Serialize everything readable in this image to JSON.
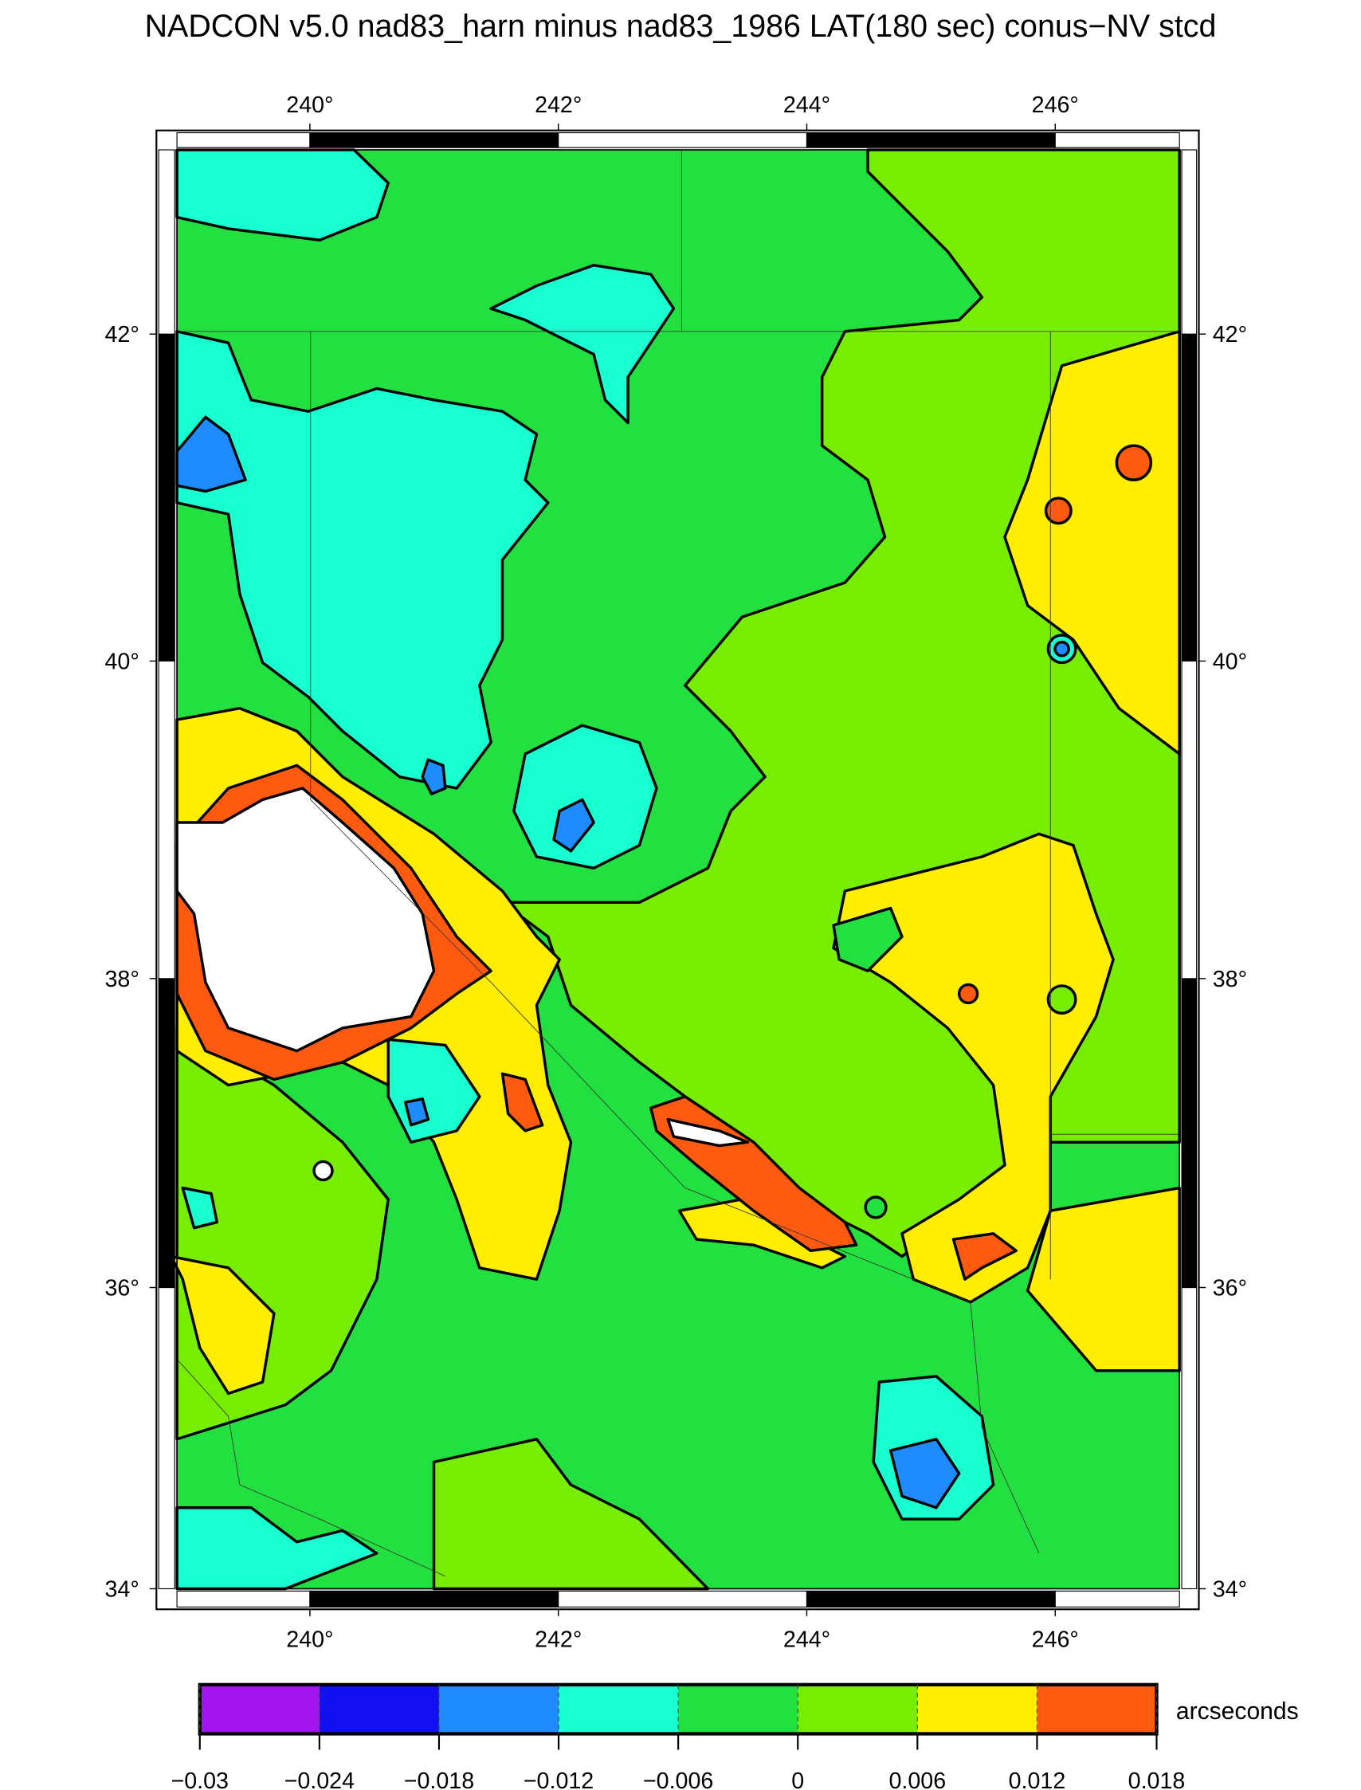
{
  "chart_data": {
    "type": "map",
    "title": "NADCON v5.0 nad83_harn minus nad83_1986 LAT(180 sec) conus−NV stcd",
    "xlim": [
      238.93,
      247
    ],
    "ylim": [
      34,
      43.1
    ],
    "xticks": [
      {
        "value": 240,
        "label": "240°"
      },
      {
        "value": 242,
        "label": "242°"
      },
      {
        "value": 244,
        "label": "244°"
      },
      {
        "value": 246,
        "label": "246°"
      }
    ],
    "yticks": [
      {
        "value": 34,
        "label": "34°"
      },
      {
        "value": 36,
        "label": "36°"
      },
      {
        "value": 38,
        "label": "38°"
      },
      {
        "value": 40,
        "label": "40°"
      },
      {
        "value": 42,
        "label": "42°"
      }
    ],
    "colorbar": {
      "label": "arcseconds",
      "clim": [
        -0.03,
        0.018
      ],
      "ticks": [
        {
          "value": -0.03,
          "label": "−0.03"
        },
        {
          "value": -0.024,
          "label": "−0.024"
        },
        {
          "value": -0.018,
          "label": "−0.018"
        },
        {
          "value": -0.012,
          "label": "−0.012"
        },
        {
          "value": -0.006,
          "label": "−0.006"
        },
        0,
        0.006,
        0.012,
        0.018
      ],
      "colors": [
        "#a214f0",
        "#1010f0",
        "#1e8cff",
        "#18ffd0",
        "#22e040",
        "#77ee00",
        "#ffee00",
        "#ff5a10"
      ]
    }
  }
}
